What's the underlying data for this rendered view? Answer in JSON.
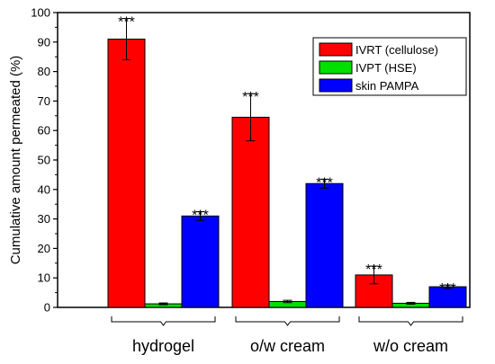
{
  "chart_data": {
    "type": "bar",
    "title": "",
    "xlabel": "",
    "ylabel": "Cumulative amount permeated (%)",
    "ylim": [
      0,
      100
    ],
    "yticks": [
      0,
      10,
      20,
      30,
      40,
      50,
      60,
      70,
      80,
      90,
      100
    ],
    "grid": false,
    "legend_position": "top-right",
    "categories": [
      "hydrogel",
      "o/w cream",
      "w/o cream"
    ],
    "series": [
      {
        "name": "IVRT (cellulose)",
        "color": "#ff0000",
        "values": [
          91,
          64.5,
          11
        ],
        "errors": [
          7,
          8,
          3
        ],
        "annotations": [
          "***",
          "***",
          "***"
        ]
      },
      {
        "name": "IVPT (HSE)",
        "color": "#00e000",
        "values": [
          1.2,
          2.0,
          1.4
        ],
        "errors": [
          0.3,
          0.4,
          0.3
        ],
        "annotations": [
          "",
          "",
          ""
        ]
      },
      {
        "name": "skin PAMPA",
        "color": "#0000ff",
        "values": [
          31,
          42,
          7
        ],
        "errors": [
          1.5,
          1.5,
          0.6
        ],
        "annotations": [
          "***",
          "***",
          "***"
        ]
      }
    ]
  }
}
